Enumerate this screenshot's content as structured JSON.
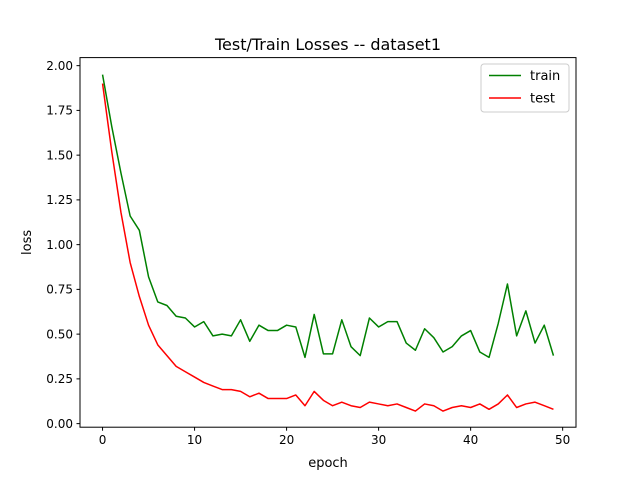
{
  "chart_data": {
    "type": "line",
    "title": "Test/Train Losses -- dataset1",
    "xlabel": "epoch",
    "ylabel": "loss",
    "xlim": [
      -2.45,
      51.45
    ],
    "ylim": [
      -0.02,
      2.045
    ],
    "x_ticks": [
      0,
      10,
      20,
      30,
      40,
      50
    ],
    "x_tick_labels": [
      "0",
      "10",
      "20",
      "30",
      "40",
      "50"
    ],
    "y_ticks": [
      0.0,
      0.25,
      0.5,
      0.75,
      1.0,
      1.25,
      1.5,
      1.75,
      2.0
    ],
    "y_tick_labels": [
      "0.00",
      "0.25",
      "0.50",
      "0.75",
      "1.00",
      "1.25",
      "1.50",
      "1.75",
      "2.00"
    ],
    "grid": false,
    "legend_position": "top-right",
    "x": [
      0,
      1,
      2,
      3,
      4,
      5,
      6,
      7,
      8,
      9,
      10,
      11,
      12,
      13,
      14,
      15,
      16,
      17,
      18,
      19,
      20,
      21,
      22,
      23,
      24,
      25,
      26,
      27,
      28,
      29,
      30,
      31,
      32,
      33,
      34,
      35,
      36,
      37,
      38,
      39,
      40,
      41,
      42,
      43,
      44,
      45,
      46,
      47,
      48,
      49
    ],
    "series": [
      {
        "name": "train",
        "color": "#008000",
        "values": [
          1.95,
          1.66,
          1.4,
          1.16,
          1.08,
          0.82,
          0.68,
          0.66,
          0.6,
          0.59,
          0.54,
          0.57,
          0.49,
          0.5,
          0.49,
          0.58,
          0.46,
          0.55,
          0.52,
          0.52,
          0.55,
          0.54,
          0.37,
          0.61,
          0.39,
          0.39,
          0.58,
          0.43,
          0.38,
          0.59,
          0.54,
          0.57,
          0.57,
          0.45,
          0.41,
          0.53,
          0.48,
          0.4,
          0.43,
          0.49,
          0.52,
          0.4,
          0.37,
          0.56,
          0.78,
          0.49,
          0.63,
          0.45,
          0.55,
          0.38
        ]
      },
      {
        "name": "test",
        "color": "#ff0000",
        "values": [
          1.9,
          1.52,
          1.18,
          0.9,
          0.71,
          0.55,
          0.44,
          0.38,
          0.32,
          0.29,
          0.26,
          0.23,
          0.21,
          0.19,
          0.19,
          0.18,
          0.15,
          0.17,
          0.14,
          0.14,
          0.14,
          0.16,
          0.1,
          0.18,
          0.13,
          0.1,
          0.12,
          0.1,
          0.09,
          0.12,
          0.11,
          0.1,
          0.11,
          0.09,
          0.07,
          0.11,
          0.1,
          0.07,
          0.09,
          0.1,
          0.09,
          0.11,
          0.08,
          0.11,
          0.16,
          0.09,
          0.11,
          0.12,
          0.1,
          0.08
        ]
      }
    ]
  }
}
